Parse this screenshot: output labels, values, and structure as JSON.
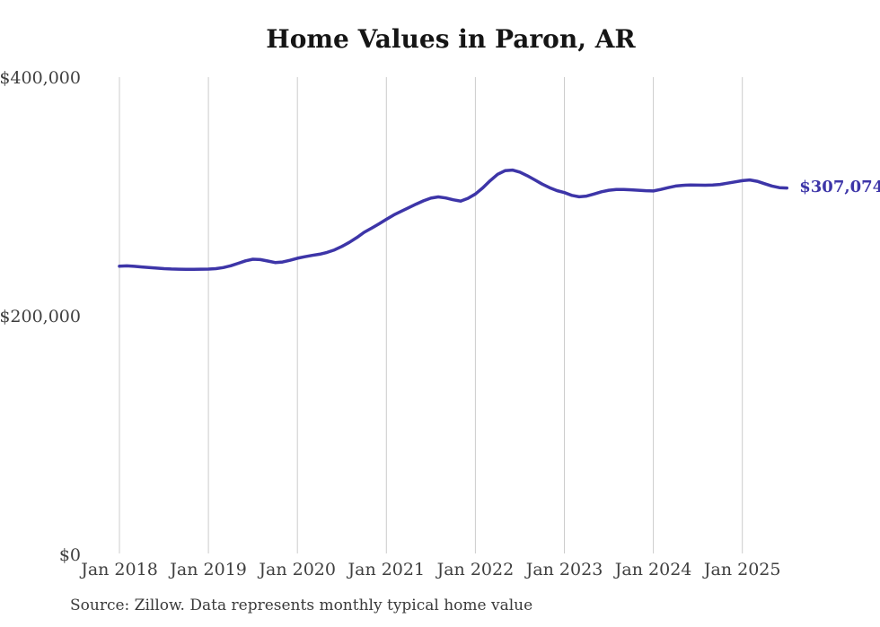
{
  "chart_data": {
    "type": "line",
    "title": "Home Values in Paron, AR",
    "source": "Source: Zillow. Data represents monthly typical home value",
    "end_label": "$307,074",
    "latest_value": 307074,
    "xlabel": "",
    "ylabel": "",
    "ylim": [
      0,
      400000
    ],
    "grid": "vertical-only",
    "legend": "none",
    "yticks": [
      {
        "label": "$0",
        "value": 0
      },
      {
        "label": "$200,000",
        "value": 200000
      },
      {
        "label": "$400,000",
        "value": 400000
      }
    ],
    "xticks": [
      "Jan 2018",
      "Jan 2019",
      "Jan 2020",
      "Jan 2021",
      "Jan 2022",
      "Jan 2023",
      "Jan 2024",
      "Jan 2025"
    ],
    "series": [
      {
        "name": "Monthly typical home value",
        "months": [
          "Jan 2018",
          "Feb 2018",
          "Mar 2018",
          "Apr 2018",
          "May 2018",
          "Jun 2018",
          "Jul 2018",
          "Aug 2018",
          "Sep 2018",
          "Oct 2018",
          "Nov 2018",
          "Dec 2018",
          "Jan 2019",
          "Feb 2019",
          "Mar 2019",
          "Apr 2019",
          "May 2019",
          "Jun 2019",
          "Jul 2019",
          "Aug 2019",
          "Sep 2019",
          "Oct 2019",
          "Nov 2019",
          "Dec 2019",
          "Jan 2020",
          "Feb 2020",
          "Mar 2020",
          "Apr 2020",
          "May 2020",
          "Jun 2020",
          "Jul 2020",
          "Aug 2020",
          "Sep 2020",
          "Oct 2020",
          "Nov 2020",
          "Dec 2020",
          "Jan 2021",
          "Feb 2021",
          "Mar 2021",
          "Apr 2021",
          "May 2021",
          "Jun 2021",
          "Jul 2021",
          "Aug 2021",
          "Sep 2021",
          "Oct 2021",
          "Nov 2021",
          "Dec 2021",
          "Jan 2022",
          "Feb 2022",
          "Mar 2022",
          "Apr 2022",
          "May 2022",
          "Jun 2022",
          "Jul 2022",
          "Aug 2022",
          "Sep 2022",
          "Oct 2022",
          "Nov 2022",
          "Dec 2022",
          "Jan 2023",
          "Feb 2023",
          "Mar 2023",
          "Apr 2023",
          "May 2023",
          "Jun 2023",
          "Jul 2023",
          "Aug 2023",
          "Sep 2023",
          "Oct 2023",
          "Nov 2023",
          "Dec 2023",
          "Jan 2024",
          "Feb 2024",
          "Mar 2024",
          "Apr 2024",
          "May 2024",
          "Jun 2024",
          "Jul 2024",
          "Aug 2024",
          "Sep 2024",
          "Oct 2024",
          "Nov 2024",
          "Dec 2024",
          "Jan 2025",
          "Feb 2025",
          "Mar 2025",
          "Apr 2025",
          "May 2025",
          "Jun 2025",
          "Jul 2025"
        ],
        "values": [
          241500,
          241800,
          241400,
          240900,
          240400,
          239900,
          239500,
          239200,
          239000,
          238900,
          238900,
          239000,
          239100,
          239500,
          240400,
          241900,
          243900,
          246000,
          247400,
          247100,
          245900,
          244600,
          245000,
          246500,
          248200,
          249500,
          250600,
          251600,
          253100,
          255200,
          258100,
          261500,
          265500,
          269900,
          273400,
          277000,
          280800,
          284500,
          287500,
          290500,
          293500,
          296300,
          298600,
          299600,
          298700,
          297200,
          296100,
          298400,
          302000,
          307200,
          313200,
          318600,
          321600,
          322100,
          320400,
          317400,
          313900,
          310400,
          307400,
          304900,
          303200,
          300900,
          299700,
          300300,
          302000,
          303900,
          305200,
          305800,
          305900,
          305600,
          305200,
          304800,
          304600,
          305900,
          307400,
          308700,
          309300,
          309600,
          309500,
          309400,
          309600,
          310100,
          311100,
          312200,
          313200,
          313800,
          312700,
          310700,
          308700,
          307400,
          307074
        ]
      }
    ],
    "colors": {
      "line": "#3d35a8",
      "value_label": "#3d35a8",
      "grid": "#cccccc",
      "ticks": "#3f3f3f",
      "title": "#151515",
      "source": "#3a3a3a",
      "background": "#ffffff"
    }
  }
}
